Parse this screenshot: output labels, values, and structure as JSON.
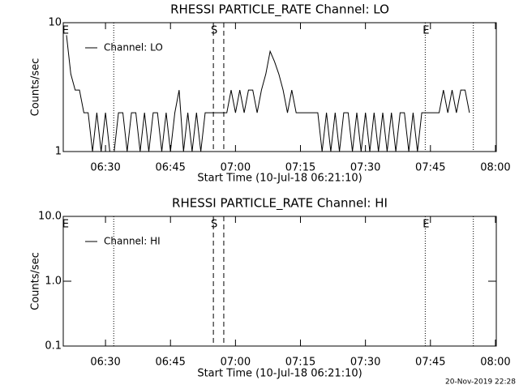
{
  "chart_data": [
    {
      "type": "line",
      "title": "RHESSI PARTICLE_RATE Channel: LO",
      "x_label": "Start Time (10-Jul-18 06:21:10)",
      "y_label": "Counts/sec",
      "xlim": [
        380.25,
        480.2
      ],
      "xticks": [
        {
          "value": 390,
          "label": "06:30"
        },
        {
          "value": 405,
          "label": "06:45"
        },
        {
          "value": 420,
          "label": "07:00"
        },
        {
          "value": 435,
          "label": "07:15"
        },
        {
          "value": 450,
          "label": "07:30"
        },
        {
          "value": 465,
          "label": "07:45"
        },
        {
          "value": 480,
          "label": "08:00"
        }
      ],
      "ylim": [
        1,
        10
      ],
      "yticks": [
        1,
        10
      ],
      "log_y": true,
      "legend": "upper left",
      "vlines": [
        {
          "x": 391.9,
          "style": "dotted"
        },
        {
          "x": 414.9,
          "style": "dashed"
        },
        {
          "x": 417.3,
          "style": "dashed"
        },
        {
          "x": 463.8,
          "style": "dotted"
        },
        {
          "x": 474.9,
          "style": "dotted"
        }
      ],
      "annotations": [
        {
          "x": 380.6,
          "text": "E"
        },
        {
          "x": 414.9,
          "text": "S"
        },
        {
          "x": 463.8,
          "text": "E"
        }
      ],
      "series": [
        {
          "name": "Channel: LO",
          "color": "#000000",
          "x": [
            381,
            382,
            383,
            384,
            385,
            386,
            387,
            388,
            389,
            390,
            391,
            392,
            393,
            394,
            395,
            396,
            397,
            398,
            399,
            400,
            401,
            402,
            403,
            404,
            405,
            406,
            407,
            408,
            409,
            410,
            411,
            412,
            413,
            414,
            415,
            416,
            417,
            418,
            419,
            420,
            421,
            422,
            423,
            424,
            425,
            426,
            427,
            428,
            429,
            430,
            431,
            432,
            433,
            434,
            435,
            436,
            437,
            438,
            439,
            440,
            441,
            442,
            443,
            444,
            445,
            446,
            447,
            448,
            449,
            450,
            451,
            452,
            453,
            454,
            455,
            456,
            457,
            458,
            459,
            460,
            461,
            462,
            463,
            464,
            465,
            466,
            467,
            468,
            469,
            470,
            471,
            472,
            473,
            474
          ],
          "values": [
            8,
            4,
            3,
            3,
            2,
            2,
            1,
            2,
            1,
            2,
            1,
            1,
            2,
            2,
            1,
            2,
            2,
            1,
            2,
            1,
            2,
            2,
            1,
            2,
            1,
            2,
            3,
            1,
            2,
            1,
            2,
            1,
            2,
            2,
            2,
            2,
            2,
            2,
            3,
            2,
            3,
            2,
            3,
            3,
            2,
            3,
            4,
            6,
            5,
            4,
            3,
            2,
            3,
            2,
            2,
            2,
            2,
            2,
            2,
            1,
            2,
            1,
            2,
            1,
            2,
            2,
            1,
            2,
            1,
            2,
            1,
            2,
            1,
            2,
            1,
            2,
            1,
            2,
            2,
            1,
            2,
            1,
            2,
            2,
            2,
            2,
            2,
            3,
            2,
            3,
            2,
            3,
            3,
            2
          ]
        }
      ]
    },
    {
      "type": "line",
      "title": "RHESSI PARTICLE_RATE Channel: HI",
      "x_label": "Start Time (10-Jul-18 06:21:10)",
      "y_label": "Counts/sec",
      "xlim": [
        380.25,
        480.2
      ],
      "xticks": [
        {
          "value": 390,
          "label": "06:30"
        },
        {
          "value": 405,
          "label": "06:45"
        },
        {
          "value": 420,
          "label": "07:00"
        },
        {
          "value": 435,
          "label": "07:15"
        },
        {
          "value": 450,
          "label": "07:30"
        },
        {
          "value": 465,
          "label": "07:45"
        },
        {
          "value": 480,
          "label": "08:00"
        }
      ],
      "ylim": [
        0.1,
        10
      ],
      "yticks": [
        0.1,
        {
          "value": 1,
          "label": "1.0"
        },
        {
          "value": 10,
          "label": "10.0"
        }
      ],
      "log_y": true,
      "legend": "upper left",
      "vlines": [
        {
          "x": 391.9,
          "style": "dotted"
        },
        {
          "x": 414.9,
          "style": "dashed"
        },
        {
          "x": 417.3,
          "style": "dashed"
        },
        {
          "x": 463.8,
          "style": "dotted"
        },
        {
          "x": 474.9,
          "style": "dotted"
        }
      ],
      "annotations": [
        {
          "x": 380.6,
          "text": "E"
        },
        {
          "x": 414.9,
          "text": "S"
        },
        {
          "x": 463.8,
          "text": "E"
        }
      ],
      "series": [
        {
          "name": "Channel: HI",
          "color": "#000000",
          "x": [],
          "values": []
        }
      ]
    }
  ],
  "footer": "20-Nov-2019 22:28"
}
